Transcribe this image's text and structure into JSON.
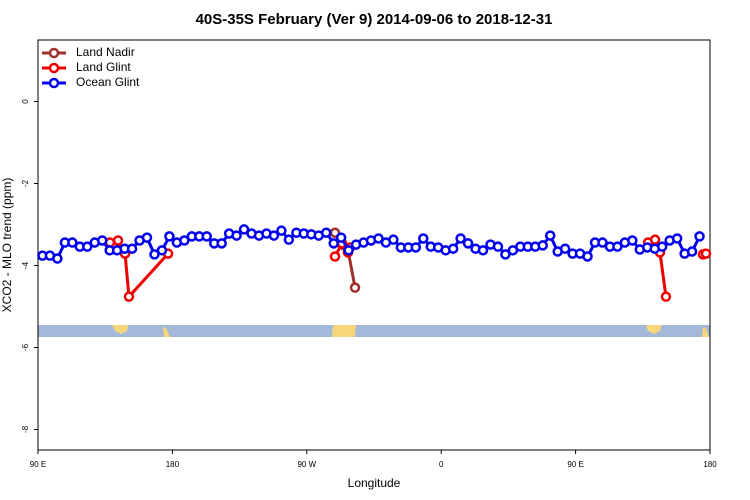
{
  "chart_data": {
    "type": "line",
    "title": "40S-35S February (Ver 9)   2014-09-06 to 2018-12-31",
    "x_label": "Longitude",
    "y_label": "XCO2 - MLO trend (ppm)",
    "xlim": [
      90,
      540
    ],
    "xticks": [
      {
        "value": 90,
        "label": "90 E"
      },
      180,
      {
        "value": 270,
        "label": "90 W"
      },
      {
        "value": 360,
        "label": "0"
      },
      {
        "value": 450,
        "label": "90 E"
      },
      {
        "value": 540,
        "label": "180"
      }
    ],
    "ylim": [
      -8.5,
      1.5
    ],
    "yticks": [
      0,
      -2,
      -4,
      -6,
      -8
    ],
    "legend": "top-left",
    "series": [
      {
        "name": "Land Nadir",
        "color": "#a0302a",
        "x": [
          288.9,
          293.6,
          297.6,
          302.3
        ],
        "values": [
          -3.2,
          -3.49,
          -3.63,
          -4.54
        ]
      },
      {
        "name": "Land Glint",
        "color": "#ee0000",
        "x": [
          138.2,
          143.6,
          148.3,
          150.9,
          177.1,
          null,
          288.9,
          293.6,
          297.6,
          299,
          null,
          498.5,
          503.2,
          506.5,
          510.5,
          null,
          535.3,
          537.3
        ],
        "values": [
          -3.44,
          -3.39,
          -3.71,
          -4.76,
          -3.71,
          null,
          -3.78,
          -3.46,
          -3.68,
          -3.56,
          null,
          -3.44,
          -3.37,
          -3.68,
          -4.76,
          null,
          -3.73,
          -3.71
        ]
      },
      {
        "name": "Ocean Glint",
        "color": "#0000ee",
        "x": [
          93,
          98,
          103,
          108,
          113,
          118,
          123,
          128,
          133,
          138,
          143,
          148,
          153,
          158,
          163,
          168,
          173,
          178,
          183,
          188,
          193,
          198,
          203,
          208,
          213,
          218,
          223,
          228,
          233,
          238,
          243,
          248,
          253,
          258,
          263,
          268,
          273,
          278,
          283,
          288,
          293,
          298,
          303,
          308,
          313,
          318,
          323,
          328,
          333,
          338,
          343,
          348,
          353,
          358,
          363,
          368,
          373,
          378,
          383,
          388,
          393,
          398,
          403,
          408,
          413,
          418,
          423,
          428,
          433,
          438,
          443,
          448,
          453,
          458,
          463,
          468,
          473,
          478,
          483,
          488,
          493,
          498,
          503,
          508,
          513,
          518,
          523,
          528,
          533
        ],
        "values": [
          -3.76,
          -3.76,
          -3.83,
          -3.44,
          -3.44,
          -3.54,
          -3.54,
          -3.44,
          -3.39,
          -3.63,
          -3.63,
          -3.59,
          -3.59,
          -3.39,
          -3.32,
          -3.73,
          -3.63,
          -3.29,
          -3.44,
          -3.39,
          -3.29,
          -3.29,
          -3.29,
          -3.46,
          -3.46,
          -3.22,
          -3.27,
          -3.12,
          -3.22,
          -3.27,
          -3.22,
          -3.27,
          -3.15,
          -3.37,
          -3.2,
          -3.22,
          -3.24,
          -3.27,
          -3.2,
          -3.46,
          -3.32,
          -3.63,
          -3.49,
          -3.44,
          -3.39,
          -3.34,
          -3.44,
          -3.37,
          -3.56,
          -3.56,
          -3.56,
          -3.34,
          -3.54,
          -3.56,
          -3.63,
          -3.59,
          -3.34,
          -3.46,
          -3.59,
          -3.63,
          -3.49,
          -3.54,
          -3.73,
          -3.63,
          -3.54,
          -3.54,
          -3.54,
          -3.51,
          -3.27,
          -3.66,
          -3.59,
          -3.71,
          -3.71,
          -3.78,
          -3.44,
          -3.44,
          -3.54,
          -3.54,
          -3.44,
          -3.39,
          -3.61,
          -3.56,
          -3.59,
          -3.54,
          -3.39,
          -3.34,
          -3.71,
          -3.66,
          -3.29
        ]
      }
    ]
  }
}
